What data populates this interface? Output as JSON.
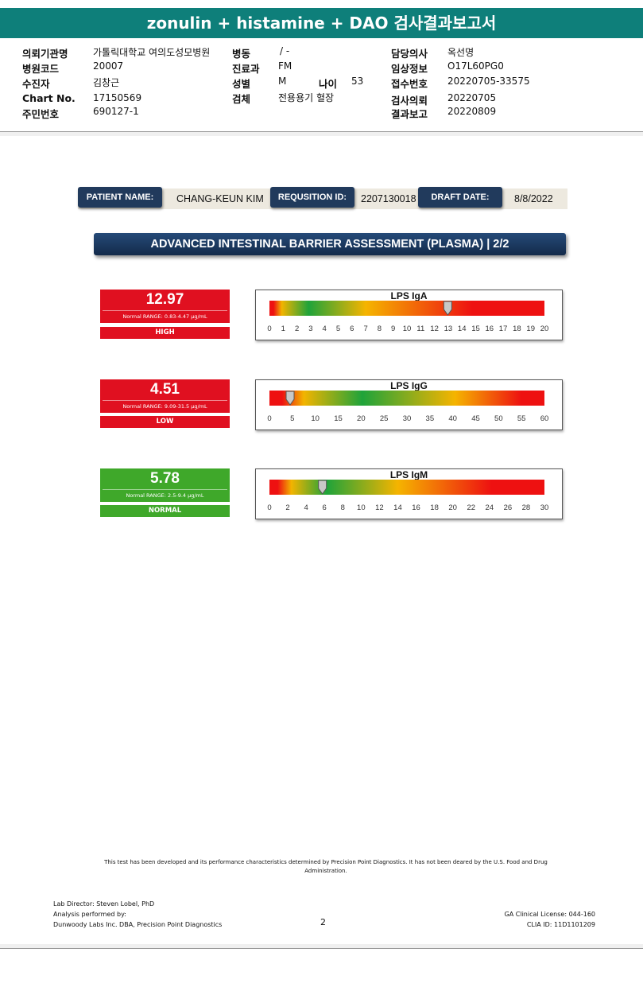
{
  "report_title": "zonulin + histamine + DAO 검사결과보고서",
  "header": {
    "institution_label": "의뢰기관명",
    "institution": "가톨릭대학교 여의도성모병원",
    "hospital_code_label": "병원코드",
    "hospital_code": "20007",
    "patient_label": "수진자",
    "patient": "김창근",
    "chart_no_label": "Chart No.",
    "chart_no": "17150569",
    "resident_no_label": "주민번호",
    "resident_no": "690127-1",
    "ward_label": "병동",
    "ward": "/ -",
    "department_label": "진료과",
    "department": "FM",
    "sex_label": "성별",
    "sex": "M",
    "age_label": "나이",
    "age": "53",
    "specimen_label": "검체",
    "specimen": "전용용기 혈장",
    "doctor_label": "담당의사",
    "doctor": "옥선명",
    "clinical_info_label": "임상정보",
    "clinical_info": "O17L60PG0",
    "receipt_no_label": "접수번호",
    "receipt_no": "20220705-33575",
    "request_date_label": "검사의뢰",
    "request_date": "20220705",
    "report_date_label": "결과보고",
    "report_date": "20220809"
  },
  "id_bar": {
    "patient_name_label": "PATIENT NAME:",
    "patient_name": "CHANG-KEUN KIM",
    "requisition_label": "REQUSITION ID:",
    "requisition_id": "2207130018",
    "draft_date_label": "DRAFT DATE:",
    "draft_date": "8/8/2022"
  },
  "section_title": "ADVANCED INTESTINAL BARRIER ASSESSMENT (PLASMA) | 2/2",
  "results": [
    {
      "value": "12.97",
      "range_text": "Normal RANGE: 0.83-4.47 μg/mL",
      "status": "HIGH",
      "status_color": "#e01020"
    },
    {
      "value": "4.51",
      "range_text": "Normal RANGE: 9.09-31.5 μg/mL",
      "status": "LOW",
      "status_color": "#e01020"
    },
    {
      "value": "5.78",
      "range_text": "Normal RANGE: 2.5-9.4 μg/mL",
      "status": "NORMAL",
      "status_color": "#3fa82a"
    }
  ],
  "chart_data": [
    {
      "type": "bar",
      "title": "LPS IgA",
      "xlim": [
        0,
        20
      ],
      "marker": 12.97,
      "ticks": [
        0,
        1,
        2,
        3,
        4,
        5,
        6,
        7,
        8,
        9,
        10,
        11,
        12,
        13,
        14,
        15,
        16,
        17,
        18,
        19,
        20
      ],
      "zones": [
        {
          "from": 0,
          "to": 0.6,
          "color": "#ee1111"
        },
        {
          "from": 0.6,
          "to": 1.2,
          "color": "#f2b400"
        },
        {
          "from": 1.2,
          "to": 4.5,
          "color": "#1fa33a"
        },
        {
          "from": 4.5,
          "to": 9.5,
          "color": "#f5b400"
        },
        {
          "from": 9.5,
          "to": 20,
          "color": "#ee1111"
        }
      ]
    },
    {
      "type": "bar",
      "title": "LPS IgG",
      "xlim": [
        0,
        60
      ],
      "marker": 4.51,
      "ticks": [
        0,
        5,
        10,
        15,
        20,
        25,
        30,
        35,
        40,
        45,
        50,
        55,
        60
      ],
      "zones": [
        {
          "from": 0,
          "to": 5.5,
          "color": "#ee1111"
        },
        {
          "from": 5.5,
          "to": 9.5,
          "color": "#f2b400"
        },
        {
          "from": 9.5,
          "to": 31,
          "color": "#1fa33a"
        },
        {
          "from": 31,
          "to": 50,
          "color": "#f5b400"
        },
        {
          "from": 50,
          "to": 60,
          "color": "#ee1111"
        }
      ]
    },
    {
      "type": "bar",
      "title": "LPS IgM",
      "xlim": [
        0,
        30
      ],
      "marker": 5.78,
      "ticks": [
        0,
        2,
        4,
        6,
        8,
        10,
        12,
        14,
        16,
        18,
        20,
        22,
        24,
        26,
        28,
        30
      ],
      "zones": [
        {
          "from": 0,
          "to": 1.8,
          "color": "#ee1111"
        },
        {
          "from": 1.8,
          "to": 3.0,
          "color": "#f2b400"
        },
        {
          "from": 3.0,
          "to": 9.5,
          "color": "#1fa33a"
        },
        {
          "from": 9.5,
          "to": 18.5,
          "color": "#f5b400"
        },
        {
          "from": 18.5,
          "to": 30,
          "color": "#ee1111"
        }
      ]
    }
  ],
  "footer": {
    "disclaimer": "This test has been developed and its performance characteristics determined by Precision Point Diagnostics. It has not been deared by the U.S. Food and Drug Administration.",
    "lab_director": "Lab Director: Steven Lobel, PhD",
    "analysis_by": "Analysis performed by:",
    "lab_name": "Dunwoody Labs Inc. DBA, Precision Point Diagnostics",
    "page_number": "2",
    "ga_license": "GA Clinical License: 044-160",
    "clia_id": "CLIA ID: 11D1101209"
  }
}
